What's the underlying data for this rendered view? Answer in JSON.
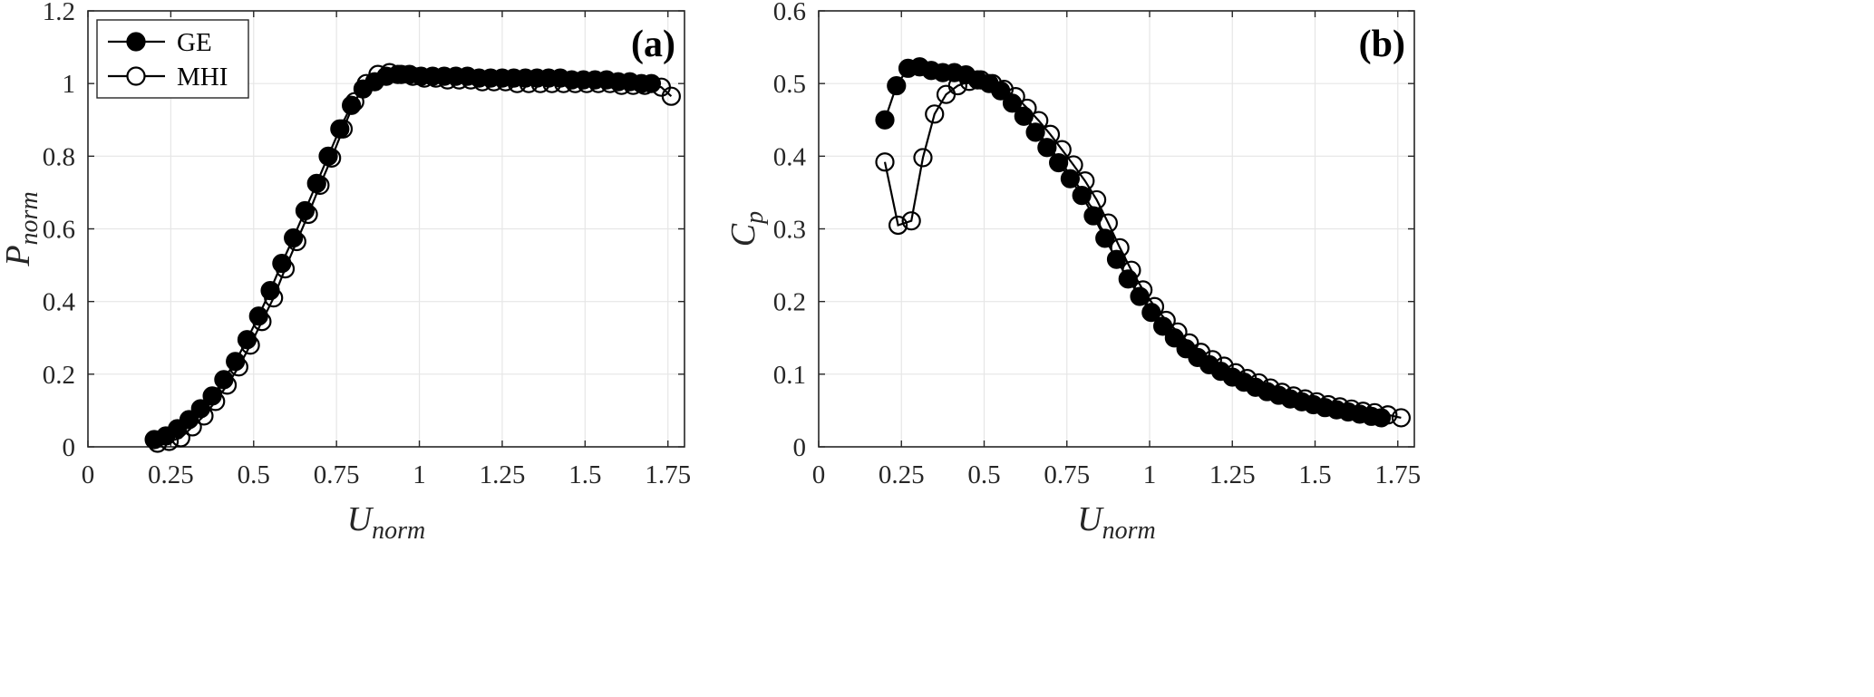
{
  "chart_data": [
    {
      "type": "line",
      "panel_label": "(a)",
      "xlabel": "U",
      "xlabel_sub": "norm",
      "ylabel": "P",
      "ylabel_sub": "norm",
      "xlim": [
        0,
        1.8
      ],
      "ylim": [
        0,
        1.2
      ],
      "xticks": [
        0,
        0.25,
        0.5,
        0.75,
        1,
        1.25,
        1.5,
        1.75
      ],
      "xtick_labels": [
        "0",
        "0.25",
        "0.5",
        "0.75",
        "1",
        "1.25",
        "1.5",
        "1.75"
      ],
      "yticks": [
        0,
        0.2,
        0.4,
        0.6,
        0.8,
        1,
        1.2
      ],
      "ytick_labels": [
        "0",
        "0.2",
        "0.4",
        "0.6",
        "0.8",
        "1",
        "1.2"
      ],
      "grid": true,
      "legend_position": "top-left",
      "series": [
        {
          "name": "GE",
          "marker": "filled-circle",
          "x": [
            0.2,
            0.235,
            0.27,
            0.305,
            0.34,
            0.375,
            0.41,
            0.445,
            0.48,
            0.515,
            0.55,
            0.585,
            0.62,
            0.655,
            0.69,
            0.725,
            0.76,
            0.795,
            0.83,
            0.865,
            0.9,
            0.935,
            0.97,
            1.005,
            1.04,
            1.075,
            1.11,
            1.145,
            1.18,
            1.215,
            1.25,
            1.285,
            1.32,
            1.355,
            1.39,
            1.425,
            1.46,
            1.495,
            1.53,
            1.565,
            1.6,
            1.635,
            1.67,
            1.7
          ],
          "y": [
            0.02,
            0.03,
            0.05,
            0.075,
            0.105,
            0.14,
            0.185,
            0.235,
            0.295,
            0.36,
            0.43,
            0.505,
            0.575,
            0.65,
            0.725,
            0.8,
            0.875,
            0.94,
            0.985,
            1.005,
            1.02,
            1.025,
            1.025,
            1.02,
            1.02,
            1.02,
            1.02,
            1.02,
            1.015,
            1.015,
            1.015,
            1.015,
            1.015,
            1.015,
            1.015,
            1.015,
            1.01,
            1.01,
            1.01,
            1.01,
            1.005,
            1.005,
            1.0,
            1.0
          ]
        },
        {
          "name": "MHI",
          "marker": "open-circle",
          "x": [
            0.21,
            0.245,
            0.28,
            0.315,
            0.35,
            0.385,
            0.42,
            0.455,
            0.49,
            0.525,
            0.56,
            0.595,
            0.63,
            0.665,
            0.7,
            0.735,
            0.77,
            0.805,
            0.84,
            0.875,
            0.91,
            0.945,
            0.98,
            1.015,
            1.05,
            1.085,
            1.12,
            1.155,
            1.19,
            1.225,
            1.26,
            1.295,
            1.33,
            1.365,
            1.4,
            1.435,
            1.47,
            1.505,
            1.54,
            1.575,
            1.61,
            1.645,
            1.68,
            1.73,
            1.76
          ],
          "y": [
            0.01,
            0.015,
            0.025,
            0.055,
            0.085,
            0.125,
            0.17,
            0.22,
            0.28,
            0.345,
            0.41,
            0.49,
            0.565,
            0.64,
            0.72,
            0.795,
            0.875,
            0.95,
            1.0,
            1.025,
            1.03,
            1.025,
            1.02,
            1.015,
            1.015,
            1.01,
            1.01,
            1.01,
            1.005,
            1.005,
            1.005,
            1.0,
            1.0,
            1.0,
            1.0,
            1.0,
            1.0,
            1.0,
            1.0,
            1.0,
            0.995,
            0.995,
            0.995,
            0.99,
            0.965
          ]
        }
      ]
    },
    {
      "type": "line",
      "panel_label": "(b)",
      "xlabel": "U",
      "xlabel_sub": "norm",
      "ylabel": "C",
      "ylabel_sub": "p",
      "xlim": [
        0,
        1.8
      ],
      "ylim": [
        0,
        0.6
      ],
      "xticks": [
        0,
        0.25,
        0.5,
        0.75,
        1,
        1.25,
        1.5,
        1.75
      ],
      "xtick_labels": [
        "0",
        "0.25",
        "0.5",
        "0.75",
        "1",
        "1.25",
        "1.5",
        "1.75"
      ],
      "yticks": [
        0,
        0.1,
        0.2,
        0.3,
        0.4,
        0.5,
        0.6
      ],
      "ytick_labels": [
        "0",
        "0.1",
        "0.2",
        "0.3",
        "0.4",
        "0.5",
        "0.6"
      ],
      "grid": true,
      "series": [
        {
          "name": "GE",
          "marker": "filled-circle",
          "x": [
            0.2,
            0.235,
            0.27,
            0.305,
            0.34,
            0.375,
            0.41,
            0.445,
            0.48,
            0.515,
            0.55,
            0.585,
            0.62,
            0.655,
            0.69,
            0.725,
            0.76,
            0.795,
            0.83,
            0.865,
            0.9,
            0.935,
            0.97,
            1.005,
            1.04,
            1.075,
            1.11,
            1.145,
            1.18,
            1.215,
            1.25,
            1.285,
            1.32,
            1.355,
            1.39,
            1.425,
            1.46,
            1.495,
            1.53,
            1.565,
            1.6,
            1.635,
            1.67,
            1.7
          ],
          "y": [
            0.45,
            0.497,
            0.521,
            0.523,
            0.518,
            0.515,
            0.515,
            0.512,
            0.505,
            0.5,
            0.49,
            0.473,
            0.455,
            0.433,
            0.412,
            0.391,
            0.369,
            0.346,
            0.318,
            0.287,
            0.258,
            0.231,
            0.207,
            0.185,
            0.166,
            0.15,
            0.135,
            0.123,
            0.113,
            0.104,
            0.096,
            0.089,
            0.082,
            0.076,
            0.071,
            0.066,
            0.062,
            0.058,
            0.054,
            0.051,
            0.048,
            0.045,
            0.042,
            0.04
          ]
        },
        {
          "name": "MHI",
          "marker": "open-circle",
          "x": [
            0.2,
            0.24,
            0.28,
            0.315,
            0.35,
            0.385,
            0.42,
            0.455,
            0.49,
            0.525,
            0.56,
            0.595,
            0.63,
            0.665,
            0.7,
            0.735,
            0.77,
            0.805,
            0.84,
            0.875,
            0.91,
            0.945,
            0.98,
            1.015,
            1.05,
            1.085,
            1.12,
            1.155,
            1.19,
            1.225,
            1.26,
            1.295,
            1.33,
            1.365,
            1.4,
            1.435,
            1.47,
            1.505,
            1.54,
            1.575,
            1.61,
            1.645,
            1.68,
            1.72,
            1.76
          ],
          "y": [
            0.392,
            0.305,
            0.311,
            0.398,
            0.458,
            0.485,
            0.497,
            0.503,
            0.505,
            0.5,
            0.492,
            0.482,
            0.466,
            0.449,
            0.43,
            0.409,
            0.388,
            0.366,
            0.34,
            0.308,
            0.274,
            0.243,
            0.216,
            0.193,
            0.174,
            0.158,
            0.143,
            0.13,
            0.12,
            0.111,
            0.102,
            0.094,
            0.088,
            0.081,
            0.075,
            0.07,
            0.066,
            0.062,
            0.058,
            0.055,
            0.052,
            0.049,
            0.047,
            0.044,
            0.04
          ]
        }
      ]
    }
  ]
}
